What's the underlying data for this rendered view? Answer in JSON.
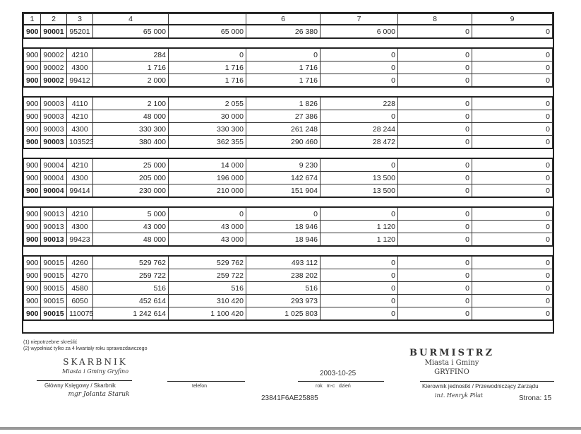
{
  "table": {
    "header": [
      "1",
      "2",
      "3",
      "4",
      "",
      "6",
      "7",
      "8",
      "9"
    ],
    "groups": [
      {
        "rows": [
          {
            "sum": true,
            "cells": [
              "900",
              "90001",
              "95201",
              "65 000",
              "65 000",
              "26 380",
              "6 000",
              "0",
              "0"
            ]
          }
        ]
      },
      {
        "rows": [
          {
            "sum": false,
            "cells": [
              "900",
              "90002",
              "4210",
              "284",
              "0",
              "0",
              "0",
              "0",
              "0"
            ]
          },
          {
            "sum": false,
            "cells": [
              "900",
              "90002",
              "4300",
              "1 716",
              "1 716",
              "1 716",
              "0",
              "0",
              "0"
            ]
          },
          {
            "sum": true,
            "cells": [
              "900",
              "90002",
              "99412",
              "2 000",
              "1 716",
              "1 716",
              "0",
              "0",
              "0"
            ]
          }
        ]
      },
      {
        "rows": [
          {
            "sum": false,
            "cells": [
              "900",
              "90003",
              "4110",
              "2 100",
              "2 055",
              "1 826",
              "228",
              "0",
              "0"
            ]
          },
          {
            "sum": false,
            "cells": [
              "900",
              "90003",
              "4210",
              "48 000",
              "30 000",
              "27 386",
              "0",
              "0",
              "0"
            ]
          },
          {
            "sum": false,
            "cells": [
              "900",
              "90003",
              "4300",
              "330 300",
              "330 300",
              "261 248",
              "28 244",
              "0",
              "0"
            ]
          },
          {
            "sum": true,
            "cells": [
              "900",
              "90003",
              "103523",
              "380 400",
              "362 355",
              "290 460",
              "28 472",
              "0",
              "0"
            ]
          }
        ]
      },
      {
        "rows": [
          {
            "sum": false,
            "cells": [
              "900",
              "90004",
              "4210",
              "25 000",
              "14 000",
              "9 230",
              "0",
              "0",
              "0"
            ]
          },
          {
            "sum": false,
            "cells": [
              "900",
              "90004",
              "4300",
              "205 000",
              "196 000",
              "142 674",
              "13 500",
              "0",
              "0"
            ]
          },
          {
            "sum": true,
            "cells": [
              "900",
              "90004",
              "99414",
              "230 000",
              "210 000",
              "151 904",
              "13 500",
              "0",
              "0"
            ]
          }
        ]
      },
      {
        "rows": [
          {
            "sum": false,
            "cells": [
              "900",
              "90013",
              "4210",
              "5 000",
              "0",
              "0",
              "0",
              "0",
              "0"
            ]
          },
          {
            "sum": false,
            "cells": [
              "900",
              "90013",
              "4300",
              "43 000",
              "43 000",
              "18 946",
              "1 120",
              "0",
              "0"
            ]
          },
          {
            "sum": true,
            "cells": [
              "900",
              "90013",
              "99423",
              "48 000",
              "43 000",
              "18 946",
              "1 120",
              "0",
              "0"
            ]
          }
        ]
      },
      {
        "rows": [
          {
            "sum": false,
            "cells": [
              "900",
              "90015",
              "4260",
              "529 762",
              "529 762",
              "493 112",
              "0",
              "0",
              "0"
            ]
          },
          {
            "sum": false,
            "cells": [
              "900",
              "90015",
              "4270",
              "259 722",
              "259 722",
              "238 202",
              "0",
              "0",
              "0"
            ]
          },
          {
            "sum": false,
            "cells": [
              "900",
              "90015",
              "4580",
              "516",
              "516",
              "516",
              "0",
              "0",
              "0"
            ]
          },
          {
            "sum": false,
            "cells": [
              "900",
              "90015",
              "6050",
              "452 614",
              "310 420",
              "293 973",
              "0",
              "0",
              "0"
            ]
          },
          {
            "sum": true,
            "cells": [
              "900",
              "90015",
              "110075",
              "1 242 614",
              "1 100 420",
              "1 025 803",
              "0",
              "0",
              "0"
            ]
          }
        ]
      }
    ]
  },
  "footer": {
    "note1": "(1) niepotrzebne skreślić",
    "note2": "(2) wypełniać tylko za 4 kwartały roku sprawozdawczego",
    "accountant_label": "Główny Księgowy / Skarbnik",
    "phone_label": "telefon",
    "date_value": "2003-10-25",
    "date_label": "rok   m-c   dzień",
    "head_label": "Kierownik jednostki / Przewodniczący Zarządu",
    "code": "23841F6AE25885",
    "page": "Strona: 15"
  },
  "stamps": {
    "left": [
      "SKARBNIK",
      "Miasta i Gminy Gryfino",
      "mgr Jolanta Staruk"
    ],
    "right": [
      "BURMISTRZ",
      "Miasta i Gminy",
      "GRYFINO",
      "inż. Henryk Piłat"
    ]
  }
}
